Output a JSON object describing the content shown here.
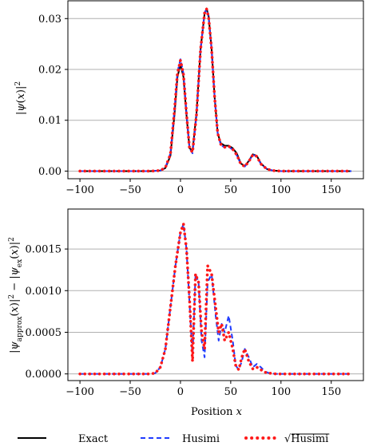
{
  "chart_data": [
    {
      "type": "line",
      "ylabel": "|ψ(x)|²",
      "xlim": [
        -112,
        182
      ],
      "ylim": [
        -0.0015,
        0.0335
      ],
      "xticks": [
        -100,
        -50,
        0,
        50,
        100,
        150
      ],
      "xtick_labels": [
        "−100",
        "−50",
        "0",
        "50",
        "100",
        "150"
      ],
      "yticks": [
        0,
        0.01,
        0.02,
        0.03
      ],
      "ytick_labels": [
        "0.00",
        "0.01",
        "0.02",
        "0.03"
      ],
      "grid": "y",
      "series": [
        {
          "name": "Exact",
          "x": [
            -100,
            -30,
            -20,
            -15,
            -10,
            -6,
            -3,
            0,
            3,
            6,
            9,
            12,
            16,
            20,
            24,
            26,
            28,
            31,
            34,
            37,
            40,
            44,
            48,
            52,
            56,
            60,
            64,
            68,
            72,
            76,
            80,
            86,
            92,
            100,
            110,
            130,
            170
          ],
          "y": [
            0,
            0,
            0.0001,
            0.0006,
            0.003,
            0.011,
            0.0185,
            0.021,
            0.0185,
            0.011,
            0.0045,
            0.004,
            0.0115,
            0.024,
            0.031,
            0.032,
            0.0305,
            0.024,
            0.0145,
            0.0075,
            0.0055,
            0.005,
            0.005,
            0.0045,
            0.0035,
            0.0015,
            0.001,
            0.002,
            0.0033,
            0.003,
            0.0015,
            0.0004,
            0.0001,
            0,
            0,
            0,
            0
          ]
        },
        {
          "name": "Husimi",
          "x": [
            -100,
            -30,
            -20,
            -15,
            -10,
            -6,
            -3,
            0,
            3,
            6,
            9,
            12,
            16,
            20,
            24,
            26,
            28,
            31,
            34,
            37,
            40,
            44,
            48,
            52,
            56,
            60,
            64,
            68,
            72,
            76,
            80,
            86,
            92,
            100,
            110,
            130,
            170
          ],
          "y": [
            0,
            0,
            0.0001,
            0.0007,
            0.0035,
            0.012,
            0.0195,
            0.022,
            0.0192,
            0.0115,
            0.0045,
            0.0035,
            0.011,
            0.0238,
            0.0312,
            0.0318,
            0.0302,
            0.0238,
            0.0145,
            0.0075,
            0.0052,
            0.0046,
            0.0048,
            0.0042,
            0.0031,
            0.0014,
            0.0009,
            0.0019,
            0.0032,
            0.0029,
            0.0014,
            0.0004,
            0.0001,
            0,
            0,
            0,
            0
          ]
        },
        {
          "name": "√Husimi",
          "x": [
            -100,
            -30,
            -20,
            -15,
            -10,
            -6,
            -3,
            0,
            3,
            6,
            9,
            12,
            16,
            20,
            24,
            26,
            28,
            31,
            34,
            37,
            40,
            44,
            48,
            52,
            56,
            60,
            64,
            68,
            72,
            76,
            80,
            86,
            92,
            100,
            110,
            130,
            170
          ],
          "y": [
            0,
            0,
            0.0001,
            0.0007,
            0.0033,
            0.0118,
            0.0192,
            0.0218,
            0.019,
            0.0113,
            0.0045,
            0.0037,
            0.0112,
            0.0239,
            0.0311,
            0.0319,
            0.0303,
            0.0239,
            0.0145,
            0.0075,
            0.0053,
            0.0047,
            0.0049,
            0.0043,
            0.0032,
            0.0014,
            0.0009,
            0.0019,
            0.0032,
            0.0029,
            0.0014,
            0.0004,
            0.0001,
            0,
            0,
            0,
            0
          ]
        }
      ]
    },
    {
      "type": "line",
      "xlabel": "Position x",
      "ylabel": "|ψ_approx(x)|² − |ψ_ex(x)|²",
      "xlim": [
        -112,
        182
      ],
      "ylim": [
        -8e-05,
        0.00198
      ],
      "xticks": [
        -100,
        -50,
        0,
        50,
        100,
        150
      ],
      "xtick_labels": [
        "−100",
        "−50",
        "0",
        "50",
        "100",
        "150"
      ],
      "yticks": [
        0,
        0.0005,
        0.001,
        0.0015
      ],
      "ytick_labels": [
        "0.0000",
        "0.0005",
        "0.0010",
        "0.0015"
      ],
      "grid": "y",
      "series": [
        {
          "name": "Husimi",
          "x": [
            -100,
            -30,
            -25,
            -20,
            -15,
            -10,
            -5,
            0,
            3,
            6,
            9,
            12,
            15,
            18,
            21,
            24,
            27,
            31,
            35,
            38,
            41,
            44,
            48,
            52,
            55,
            58,
            61,
            64,
            68,
            72,
            76,
            80,
            84,
            88,
            95,
            110,
            130,
            170
          ],
          "y": [
            0,
            0,
            1e-05,
            8e-05,
            0.0003,
            0.0008,
            0.0013,
            0.0017,
            0.0018,
            0.0015,
            0.00085,
            0.0002,
            0.0012,
            0.0011,
            0.0004,
            0.0002,
            0.0011,
            0.0012,
            0.0007,
            0.0004,
            0.0006,
            0.0005,
            0.0007,
            0.0004,
            0.0001,
            5e-05,
            0.00015,
            0.0003,
            0.0002,
            8e-05,
            0.00012,
            8e-05,
            3e-05,
            1e-05,
            0,
            0,
            0,
            0
          ]
        },
        {
          "name": "√Husimi",
          "x": [
            -100,
            -30,
            -25,
            -20,
            -15,
            -10,
            -5,
            0,
            3,
            6,
            9,
            12,
            15,
            18,
            21,
            24,
            27,
            31,
            35,
            38,
            41,
            44,
            48,
            52,
            55,
            58,
            61,
            64,
            68,
            72,
            76,
            80,
            84,
            88,
            95,
            110,
            130,
            170
          ],
          "y": [
            0,
            0,
            1e-05,
            8e-05,
            0.0003,
            0.0008,
            0.0013,
            0.0017,
            0.0018,
            0.0015,
            0.0009,
            0.00015,
            0.0012,
            0.0011,
            0.0005,
            0.0003,
            0.0013,
            0.0012,
            0.0008,
            0.0005,
            0.0006,
            0.0004,
            0.0005,
            0.0003,
            0.0001,
            5e-05,
            0.0002,
            0.0003,
            0.00015,
            6e-05,
            8e-05,
            5e-05,
            2e-05,
            1e-05,
            0,
            0,
            0,
            0
          ]
        }
      ]
    }
  ],
  "legend": {
    "placement": "bottom",
    "entries": [
      "Exact",
      "Husimi",
      "√Husimi"
    ],
    "colors": [
      "#000000",
      "#1f3bff",
      "#ff1a1a"
    ]
  },
  "colors": {
    "exact": "#000000",
    "husimi": "#1f3bff",
    "sqrt_husimi": "#ff1a1a",
    "grid": "#b0b0b0"
  }
}
